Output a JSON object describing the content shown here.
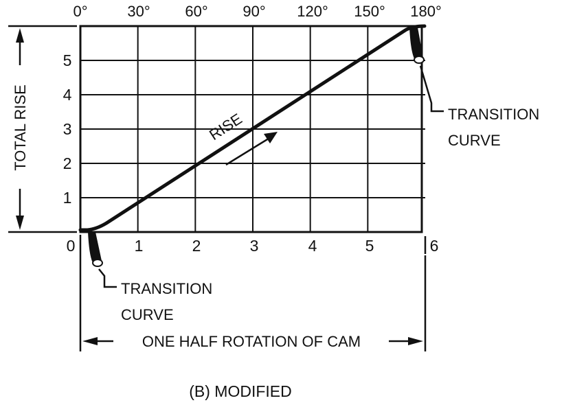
{
  "caption": "(B) MODIFIED",
  "degree_labels": [
    "0°",
    "30°",
    "60°",
    "90°",
    "120°",
    "150°",
    "180°"
  ],
  "x_labels": [
    "0",
    "1",
    "2",
    "3",
    "4",
    "5",
    "6"
  ],
  "y_labels": [
    "1",
    "2",
    "3",
    "4",
    "5"
  ],
  "total_rise_label": "TOTAL RISE",
  "rise_label": "RISE",
  "bottom_label": "ONE HALF ROTATION OF CAM",
  "transition_right": {
    "line1": "TRANSITION",
    "line2": "CURVE"
  },
  "transition_left": {
    "line1": "TRANSITION",
    "line2": "CURVE"
  },
  "chart_data": {
    "type": "line",
    "x": [
      0,
      0.3,
      5.7,
      6
    ],
    "y": [
      0,
      0.1,
      5.9,
      6
    ],
    "xlim": [
      0,
      6
    ],
    "ylim": [
      0,
      6
    ],
    "grid": true,
    "colors": {
      "ink": "#111111",
      "background": "#ffffff"
    }
  }
}
